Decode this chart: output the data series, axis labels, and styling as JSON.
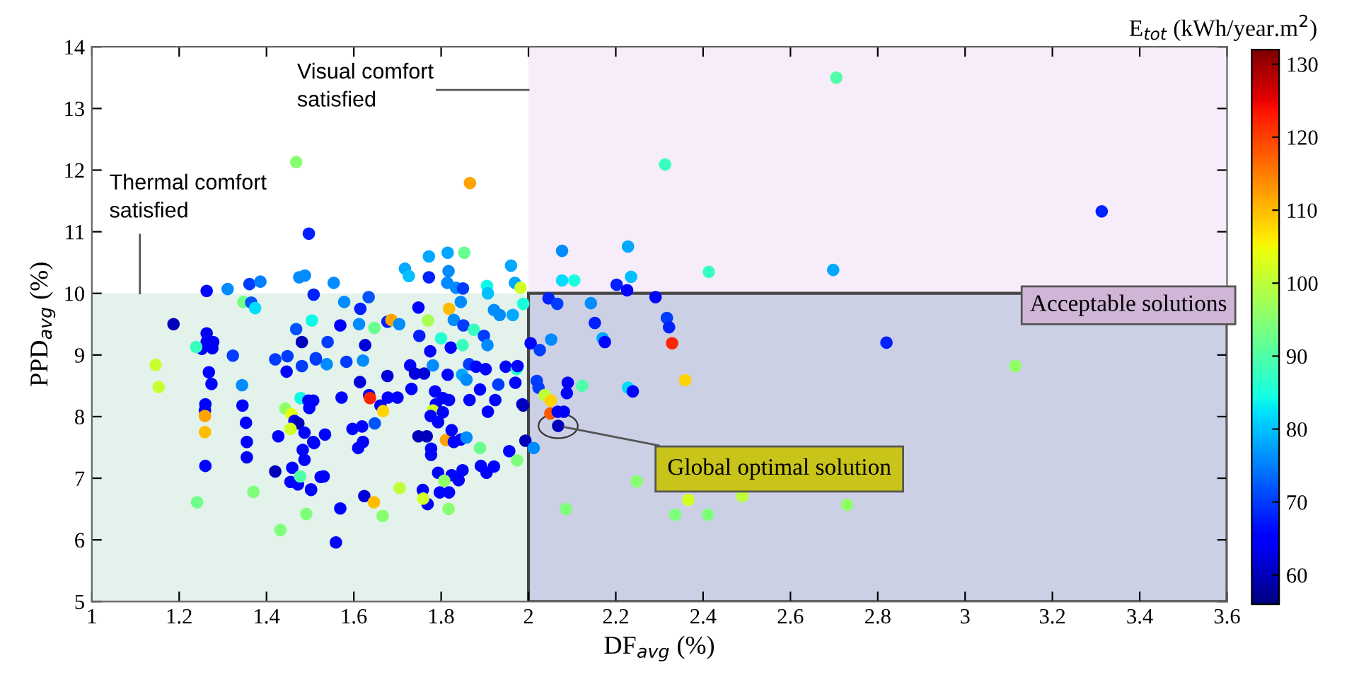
{
  "chart_data": {
    "type": "scatter",
    "xlabel": "DF$_{avg}$ (%)",
    "ylabel": "PPD$_{avg}$ (%)",
    "clabel": "E$_{tot}$ (kWh/year.m$^{2}$)",
    "xlim": [
      1,
      3.6
    ],
    "xticks": [
      1,
      1.2,
      1.4,
      1.6,
      1.8,
      2,
      2.2,
      2.4,
      2.6,
      2.8,
      3,
      3.2,
      3.4,
      3.6
    ],
    "ylim": [
      5,
      14
    ],
    "yticks": [
      5,
      6,
      7,
      8,
      9,
      10,
      11,
      12,
      13,
      14
    ],
    "clim": [
      56,
      132
    ],
    "cticks": [
      60,
      70,
      80,
      90,
      100,
      110,
      120,
      130
    ],
    "marker": "circle",
    "grid": false,
    "legend": false,
    "bands": [
      {
        "axis": "y",
        "from": 5,
        "to": 10,
        "color": "#e3f2ea",
        "label": "Thermal comfort\nsatisfied"
      },
      {
        "axis": "x",
        "from": 2,
        "to": 3.6,
        "color": "#f6ecfa",
        "label": "Visual comfort\nsatisfied"
      }
    ],
    "annotations": [
      "Acceptable solutions",
      {
        "text": "Global optimal solution",
        "x": 2.068,
        "y": 7.85
      }
    ],
    "x": [
      1.866,
      1.772,
      1.815,
      1.853,
      1.717,
      1.726,
      1.772,
      1.817,
      1.814,
      1.834,
      1.85,
      1.96,
      1.969,
      1.905,
      1.907,
      1.982,
      1.988,
      1.554,
      1.634,
      1.578,
      1.615,
      1.748,
      1.818,
      1.845,
      1.569,
      1.612,
      1.647,
      1.677,
      1.686,
      1.704,
      1.77,
      1.829,
      1.851,
      1.875,
      1.921,
      1.934,
      1.964,
      1.898,
      1.906,
      1.75,
      1.8,
      1.775,
      1.822,
      1.849,
      1.54,
      1.538,
      1.583,
      1.626,
      1.621,
      1.513,
      1.729,
      1.74,
      1.761,
      1.781,
      1.815,
      1.848,
      1.864,
      1.88,
      1.902,
      1.948,
      1.973,
      1.97,
      1.931,
      1.889,
      1.858,
      1.677,
      1.732,
      1.614,
      1.635,
      1.637,
      1.678,
      1.7,
      1.661,
      1.667,
      1.786,
      1.804,
      1.788,
      1.818,
      1.781,
      1.804,
      1.865,
      1.907,
      1.924,
      1.986,
      1.572,
      1.507,
      1.776,
      1.793,
      1.648,
      1.597,
      1.619,
      1.61,
      1.621,
      1.534,
      1.507,
      1.748,
      1.767,
      1.811,
      1.824,
      1.829,
      1.845,
      1.858,
      1.993,
      2.012,
      1.889,
      1.777,
      1.777,
      1.956,
      1.974,
      1.891,
      1.904,
      1.921,
      1.849,
      1.84,
      1.824,
      1.793,
      1.807,
      1.797,
      1.818,
      1.758,
      1.769,
      1.759,
      1.817,
      1.705,
      1.624,
      1.646,
      1.666,
      1.569,
      1.559,
      1.531,
      1.524,
      1.502,
      1.468,
      1.497,
      1.263,
      1.311,
      1.361,
      1.386,
      1.475,
      1.488,
      1.347,
      1.365,
      1.374,
      1.508,
      1.187,
      1.263,
      1.263,
      1.278,
      1.252,
      1.276,
      1.239,
      1.323,
      1.146,
      1.153,
      1.268,
      1.274,
      1.344,
      1.26,
      1.259,
      1.259,
      1.259,
      1.26,
      1.241,
      1.345,
      1.353,
      1.355,
      1.355,
      1.37,
      1.432,
      1.491,
      1.468,
      1.504,
      1.481,
      1.42,
      1.448,
      1.446,
      1.481,
      1.513,
      1.478,
      1.496,
      1.498,
      1.443,
      1.457,
      1.464,
      1.473,
      1.455,
      1.487,
      1.427,
      1.509,
      1.483,
      1.487,
      1.459,
      1.42,
      1.455,
      1.472,
      1.502,
      1.477,
      2.705,
      2.313,
      3.313,
      2.077,
      2.228,
      2.413,
      2.698,
      2.077,
      2.105,
      2.235,
      2.202,
      2.226,
      2.291,
      2.046,
      2.066,
      2.143,
      2.317,
      2.322,
      2.152,
      2.17,
      2.175,
      2.329,
      2.82,
      2.005,
      2.026,
      2.052,
      3.115,
      2.359,
      2.019,
      2.023,
      2.09,
      2.088,
      2.123,
      2.228,
      2.239,
      1.975,
      2.037,
      2.051,
      2.05,
      2.067,
      2.081,
      2.068,
      1.988,
      2.086,
      2.248,
      2.336,
      2.366,
      2.411,
      2.49,
      2.73
    ],
    "values": [
      11.79,
      10.6,
      10.66,
      10.66,
      10.4,
      10.28,
      10.26,
      10.36,
      10.17,
      10.09,
      10.08,
      10.45,
      10.17,
      10.12,
      10.0,
      10.09,
      9.83,
      10.17,
      9.94,
      9.86,
      9.75,
      9.77,
      9.75,
      9.86,
      9.48,
      9.5,
      9.44,
      9.54,
      9.57,
      9.5,
      9.56,
      9.57,
      9.48,
      9.41,
      9.73,
      9.65,
      9.65,
      9.31,
      9.16,
      9.31,
      9.27,
      9.06,
      9.12,
      9.16,
      9.21,
      8.85,
      8.89,
      9.16,
      8.91,
      8.93,
      8.83,
      8.7,
      8.7,
      8.83,
      8.68,
      8.68,
      8.85,
      8.81,
      8.77,
      8.81,
      8.77,
      8.55,
      8.52,
      8.44,
      8.6,
      8.66,
      8.45,
      8.56,
      8.35,
      8.3,
      8.31,
      8.31,
      8.18,
      8.09,
      8.41,
      8.3,
      8.2,
      8.27,
      8.1,
      8.07,
      8.27,
      8.08,
      8.27,
      8.2,
      8.31,
      8.26,
      8.01,
      7.91,
      7.89,
      7.8,
      7.84,
      7.49,
      7.59,
      7.71,
      7.59,
      7.68,
      7.68,
      7.62,
      7.78,
      7.59,
      7.63,
      7.66,
      7.61,
      7.49,
      7.49,
      7.48,
      7.38,
      7.44,
      7.29,
      7.2,
      7.09,
      7.19,
      7.13,
      6.97,
      7.05,
      7.09,
      6.96,
      6.77,
      6.77,
      6.81,
      6.58,
      6.67,
      6.5,
      6.84,
      6.71,
      6.61,
      6.39,
      6.51,
      5.96,
      7.03,
      7.02,
      6.81,
      12.13,
      10.97,
      10.04,
      10.07,
      10.15,
      10.19,
      10.26,
      10.29,
      9.86,
      9.85,
      9.76,
      9.98,
      9.5,
      9.35,
      9.21,
      9.21,
      9.1,
      9.11,
      9.13,
      8.99,
      8.84,
      8.48,
      8.72,
      8.53,
      8.51,
      8.2,
      8.1,
      8.01,
      7.75,
      7.2,
      6.61,
      8.18,
      7.9,
      7.59,
      7.34,
      6.78,
      6.16,
      6.42,
      9.42,
      9.56,
      9.21,
      8.93,
      8.98,
      8.73,
      8.82,
      8.95,
      8.3,
      8.26,
      8.14,
      8.13,
      8.04,
      7.93,
      7.89,
      7.8,
      7.74,
      7.68,
      7.57,
      7.46,
      7.3,
      7.17,
      7.11,
      6.94,
      6.9,
      6.82,
      7.03,
      13.5,
      12.09,
      11.33,
      10.69,
      10.76,
      10.35,
      10.38,
      10.21,
      10.21,
      10.27,
      10.14,
      10.05,
      9.94,
      9.92,
      9.83,
      9.84,
      9.6,
      9.45,
      9.52,
      9.27,
      9.21,
      9.19,
      9.2,
      9.19,
      9.08,
      9.25,
      8.82,
      8.59,
      8.58,
      8.47,
      8.55,
      8.38,
      8.5,
      8.47,
      8.41,
      8.82,
      8.35,
      8.26,
      8.05,
      8.08,
      8.08,
      7.85,
      8.18,
      6.5,
      6.95,
      6.41,
      6.65,
      6.41,
      6.71,
      6.57
    ],
    "cvalues": [
      112,
      78,
      78,
      92,
      78,
      80,
      68,
      76,
      76,
      76,
      70,
      78,
      78,
      84,
      80,
      102,
      85,
      76,
      72,
      76,
      68,
      66,
      110,
      76,
      65,
      76,
      92,
      68,
      112,
      76,
      98,
      76,
      70,
      88,
      76,
      76,
      78,
      70,
      76,
      68,
      86,
      66,
      66,
      88,
      70,
      76,
      70,
      62,
      76,
      70,
      66,
      62,
      62,
      76,
      66,
      78,
      70,
      66,
      66,
      66,
      86,
      66,
      70,
      66,
      76,
      62,
      66,
      62,
      66,
      122,
      66,
      66,
      66,
      108,
      66,
      66,
      66,
      66,
      102,
      66,
      66,
      66,
      66,
      66,
      66,
      66,
      66,
      66,
      72,
      66,
      66,
      66,
      66,
      66,
      66,
      60,
      60,
      112,
      66,
      66,
      66,
      76,
      60,
      76,
      92,
      66,
      66,
      66,
      94,
      66,
      66,
      66,
      66,
      66,
      66,
      66,
      96,
      66,
      66,
      66,
      66,
      102,
      95,
      100,
      62,
      110,
      95,
      66,
      66,
      66,
      66,
      66,
      95,
      68,
      66,
      76,
      70,
      75,
      76,
      76,
      93,
      72,
      82,
      68,
      60,
      64,
      64,
      64,
      64,
      64,
      88,
      70,
      101,
      101,
      66,
      66,
      76,
      65,
      65,
      112,
      110,
      66,
      93,
      65,
      65,
      65,
      65,
      94,
      94,
      94,
      72,
      84,
      60,
      70,
      70,
      66,
      70,
      70,
      84,
      66,
      66,
      96,
      104,
      66,
      60,
      102,
      66,
      66,
      66,
      66,
      66,
      66,
      60,
      66,
      66,
      66,
      90,
      90,
      88,
      68,
      76,
      78,
      88,
      78,
      82,
      85,
      80,
      68,
      66,
      66,
      68,
      70,
      76,
      70,
      68,
      68,
      78,
      66,
      122,
      68,
      66,
      70,
      76,
      96,
      108,
      70,
      70,
      64,
      66,
      90,
      82,
      66,
      66,
      100,
      108,
      118,
      64,
      64,
      60,
      60,
      94,
      95,
      94,
      102,
      94,
      100,
      96
    ]
  }
}
